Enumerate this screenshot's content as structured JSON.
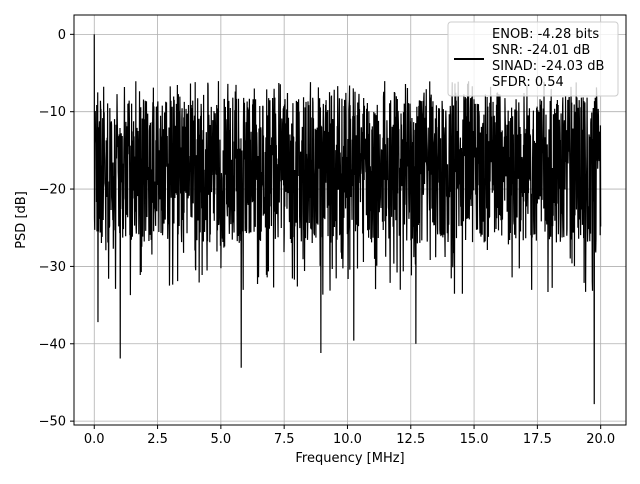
{
  "chart_data": {
    "type": "line",
    "xlabel": "Frequency [MHz]",
    "ylabel": "PSD [dB]",
    "xlim": [
      -0.8,
      21.0
    ],
    "ylim": [
      -50.5,
      2.5
    ],
    "xticks": [
      0.0,
      2.5,
      5.0,
      7.5,
      10.0,
      12.5,
      15.0,
      17.5,
      20.0
    ],
    "xtick_labels": [
      "0.0",
      "2.5",
      "5.0",
      "7.5",
      "10.0",
      "12.5",
      "15.0",
      "17.5",
      "20.0"
    ],
    "yticks": [
      0,
      -10,
      -20,
      -30,
      -40,
      -50
    ],
    "ytick_labels": [
      "0",
      "−10",
      "−20",
      "−30",
      "−40",
      "−50"
    ],
    "grid": true,
    "legend_position": "top-right",
    "legend_lines": [
      "ENOB: -4.28 bits",
      "SNR: -24.01 dB",
      "SINAD: -24.03 dB",
      "SFDR: 0.54"
    ],
    "series": [
      {
        "color": "#000000",
        "x_range": [
          0,
          20
        ],
        "points": 2048,
        "noise_floor_center": -17,
        "typical_upper": -8,
        "typical_lower": -27,
        "peak_at": [
          [
            0.0,
            0.0
          ],
          [
            0.03,
            -11
          ],
          [
            19.0,
            -10
          ]
        ],
        "deep_minima": [
          [
            0.15,
            -37.2
          ],
          [
            1.03,
            -41.9
          ],
          [
            5.8,
            -43.1
          ],
          [
            8.95,
            -41.2
          ],
          [
            10.25,
            -39.6
          ],
          [
            12.7,
            -40.0
          ],
          [
            19.75,
            -47.8
          ]
        ]
      }
    ]
  }
}
